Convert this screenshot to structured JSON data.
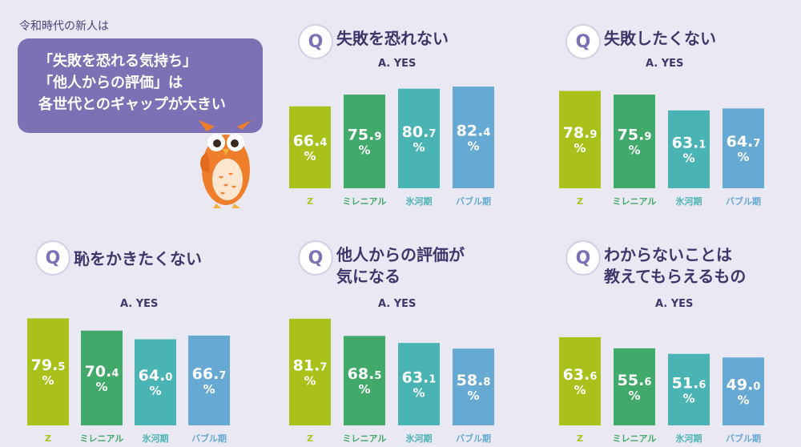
{
  "intro": {
    "label": "令和時代の新人は",
    "bubble_lines": [
      "「失敗を恐れる気持ち」",
      "「他人からの評価」は",
      "各世代とのギャップが大きい"
    ]
  },
  "q_icon": "Q",
  "colors": {
    "Z": "#a9c11a",
    "ミレニアル": "#41a96a",
    "氷河期": "#4ab3b3",
    "バブル期": "#66aad4",
    "accent": "#7e70b4"
  },
  "percent_sign": "%",
  "chart_data": [
    {
      "type": "bar",
      "title_lines": [
        "失敗を恐れない"
      ],
      "subtitle": "A. YES",
      "categories": [
        "Z",
        "ミレニアル",
        "氷河期",
        "バブル期"
      ],
      "values": [
        66.4,
        75.9,
        80.7,
        82.4
      ]
    },
    {
      "type": "bar",
      "title_lines": [
        "失敗したくない"
      ],
      "subtitle": "A. YES",
      "categories": [
        "Z",
        "ミレニアル",
        "氷河期",
        "バブル期"
      ],
      "values": [
        78.9,
        75.9,
        63.1,
        64.7
      ]
    },
    {
      "type": "bar",
      "title_lines": [
        "恥をかきたくない"
      ],
      "subtitle": "A. YES",
      "categories": [
        "Z",
        "ミレニアル",
        "氷河期",
        "バブル期"
      ],
      "values": [
        79.5,
        70.4,
        64.0,
        66.7
      ]
    },
    {
      "type": "bar",
      "title_lines": [
        "他人からの評価が",
        "気になる"
      ],
      "subtitle": "A. YES",
      "categories": [
        "Z",
        "ミレニアル",
        "氷河期",
        "バブル期"
      ],
      "values": [
        81.7,
        68.5,
        63.1,
        58.8
      ]
    },
    {
      "type": "bar",
      "title_lines": [
        "わからないことは",
        "教えてもらえるもの"
      ],
      "subtitle": "A. YES",
      "categories": [
        "Z",
        "ミレニアル",
        "氷河期",
        "バブル期"
      ],
      "values": [
        63.6,
        55.6,
        51.6,
        49.0
      ]
    }
  ]
}
